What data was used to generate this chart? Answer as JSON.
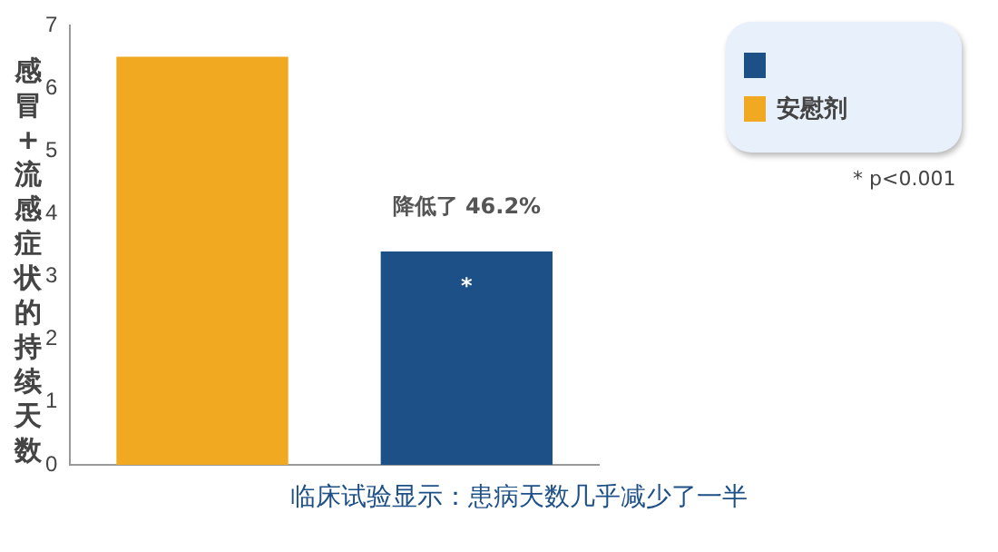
{
  "chart_data": {
    "type": "bar",
    "ylabel": "感冒+流感症状的持续天数",
    "xlabel": "临床试验显示：患病天数几乎减少了一半",
    "categories": [
      null,
      null
    ],
    "series": [
      {
        "color": "#1e5088",
        "values": [
          null,
          3.4
        ]
      },
      {
        "name": "安慰剂",
        "color": "#f2a922",
        "values": [
          6.5,
          null
        ]
      }
    ],
    "ylim": [
      0,
      7
    ],
    "yticks": [
      0,
      1,
      2,
      3,
      4,
      5,
      6,
      7
    ],
    "grid": false,
    "legend": "top right",
    "annotations": [
      "降低了 46.2%",
      "*",
      "* p<0.001"
    ]
  }
}
